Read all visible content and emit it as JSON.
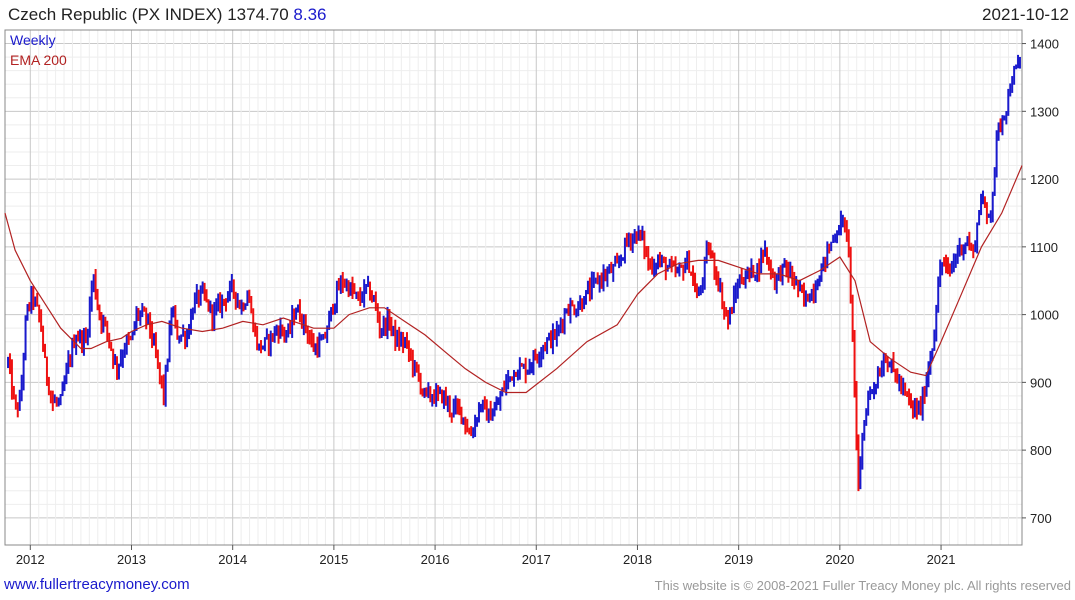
{
  "header": {
    "title": "Czech Republic (PX INDEX)",
    "last": "1374.70",
    "change": "8.36",
    "date": "2021-10-12"
  },
  "legend": {
    "weekly": "Weekly",
    "ema": "EMA 200"
  },
  "footer": {
    "site": "www.fullertreacymoney.com",
    "copyright": "This website is © 2008-2021 Fuller Treacy Money plc. All rights reserved"
  },
  "colors": {
    "up": "#1a1acc",
    "down": "#ee1111",
    "ema": "#b22222",
    "grid": "#d8d8d8"
  },
  "chart_data": {
    "type": "line",
    "title": "Czech Republic (PX INDEX)",
    "xlabel": "",
    "ylabel": "",
    "x_tick_labels": [
      "2012",
      "2013",
      "2014",
      "2015",
      "2016",
      "2017",
      "2018",
      "2019",
      "2020",
      "2021"
    ],
    "y_tick_labels": [
      "700",
      "800",
      "900",
      "1000",
      "1100",
      "1200",
      "1300",
      "1400"
    ],
    "xlim": [
      2011.75,
      2021.8
    ],
    "ylim": [
      660,
      1420
    ],
    "grid": true,
    "y_axis_side": "right",
    "legend_position": "top-left",
    "series": [
      {
        "name": "Weekly",
        "style": "ohlc-bars-colored-by-direction",
        "x": [
          2011.78,
          2011.85,
          2011.9,
          2011.96,
          2012.02,
          2012.1,
          2012.15,
          2012.22,
          2012.3,
          2012.38,
          2012.45,
          2012.55,
          2012.62,
          2012.68,
          2012.75,
          2012.85,
          2012.95,
          2013.0,
          2013.05,
          2013.1,
          2013.17,
          2013.25,
          2013.32,
          2013.4,
          2013.45,
          2013.55,
          2013.62,
          2013.7,
          2013.8,
          2013.9,
          2014.0,
          2014.08,
          2014.15,
          2014.25,
          2014.35,
          2014.45,
          2014.55,
          2014.62,
          2014.7,
          2014.8,
          2014.9,
          2015.0,
          2015.08,
          2015.15,
          2015.25,
          2015.32,
          2015.4,
          2015.45,
          2015.55,
          2015.62,
          2015.7,
          2015.8,
          2015.9,
          2016.0,
          2016.08,
          2016.15,
          2016.25,
          2016.35,
          2016.45,
          2016.52,
          2016.6,
          2016.7,
          2016.8,
          2016.9,
          2017.0,
          2017.1,
          2017.2,
          2017.3,
          2017.4,
          2017.5,
          2017.6,
          2017.7,
          2017.8,
          2017.9,
          2018.0,
          2018.05,
          2018.12,
          2018.2,
          2018.3,
          2018.4,
          2018.5,
          2018.6,
          2018.7,
          2018.8,
          2018.85,
          2018.9,
          2019.0,
          2019.1,
          2019.2,
          2019.25,
          2019.35,
          2019.45,
          2019.55,
          2019.65,
          2019.75,
          2019.85,
          2019.95,
          2020.05,
          2020.1,
          2020.14,
          2020.18,
          2020.22,
          2020.28,
          2020.35,
          2020.45,
          2020.55,
          2020.65,
          2020.72,
          2020.8,
          2020.85,
          2020.92,
          2021.0,
          2021.08,
          2021.15,
          2021.25,
          2021.32,
          2021.4,
          2021.45,
          2021.5,
          2021.55,
          2021.6,
          2021.65,
          2021.7,
          2021.75,
          2021.78
        ],
        "values": [
          930,
          860,
          870,
          1000,
          1030,
          990,
          920,
          870,
          870,
          930,
          970,
          960,
          1060,
          1000,
          980,
          920,
          960,
          960,
          1000,
          1000,
          990,
          930,
          880,
          1010,
          970,
          970,
          1020,
          1030,
          1000,
          1020,
          1040,
          1010,
          1030,
          950,
          960,
          980,
          970,
          1010,
          990,
          950,
          960,
          1020,
          1050,
          1040,
          1020,
          1040,
          1020,
          980,
          990,
          960,
          960,
          920,
          880,
          880,
          880,
          860,
          860,
          820,
          870,
          850,
          860,
          900,
          920,
          920,
          940,
          960,
          970,
          1010,
          1010,
          1030,
          1050,
          1060,
          1070,
          1110,
          1120,
          1110,
          1070,
          1080,
          1070,
          1060,
          1080,
          1020,
          1100,
          1050,
          1010,
          990,
          1050,
          1060,
          1070,
          1100,
          1050,
          1070,
          1050,
          1020,
          1040,
          1080,
          1120,
          1140,
          1060,
          920,
          730,
          820,
          880,
          900,
          940,
          910,
          880,
          860,
          860,
          900,
          960,
          1080,
          1060,
          1090,
          1110,
          1090,
          1180,
          1140,
          1160,
          1260,
          1290,
          1310,
          1350,
          1360,
          1374.7
        ]
      },
      {
        "name": "EMA 200",
        "style": "line",
        "x": [
          2011.75,
          2011.85,
          2012.0,
          2012.15,
          2012.3,
          2012.5,
          2012.6,
          2012.75,
          2012.9,
          2013.0,
          2013.15,
          2013.3,
          2013.5,
          2013.7,
          2013.9,
          2014.1,
          2014.3,
          2014.5,
          2014.6,
          2014.8,
          2015.0,
          2015.15,
          2015.35,
          2015.5,
          2015.7,
          2015.9,
          2016.1,
          2016.3,
          2016.5,
          2016.7,
          2016.9,
          2017.2,
          2017.5,
          2017.8,
          2018.0,
          2018.2,
          2018.4,
          2018.6,
          2018.8,
          2019.0,
          2019.2,
          2019.4,
          2019.6,
          2019.8,
          2020.0,
          2020.15,
          2020.3,
          2020.5,
          2020.7,
          2020.85,
          2021.0,
          2021.2,
          2021.4,
          2021.6,
          2021.8
        ],
        "values": [
          1150,
          1095,
          1050,
          1015,
          980,
          950,
          950,
          960,
          965,
          975,
          985,
          990,
          980,
          975,
          980,
          990,
          985,
          995,
          990,
          980,
          980,
          1000,
          1010,
          1010,
          990,
          970,
          945,
          920,
          900,
          885,
          885,
          920,
          960,
          985,
          1030,
          1060,
          1075,
          1080,
          1080,
          1070,
          1060,
          1060,
          1050,
          1065,
          1085,
          1050,
          960,
          935,
          915,
          910,
          960,
          1030,
          1100,
          1150,
          1220
        ]
      }
    ]
  }
}
